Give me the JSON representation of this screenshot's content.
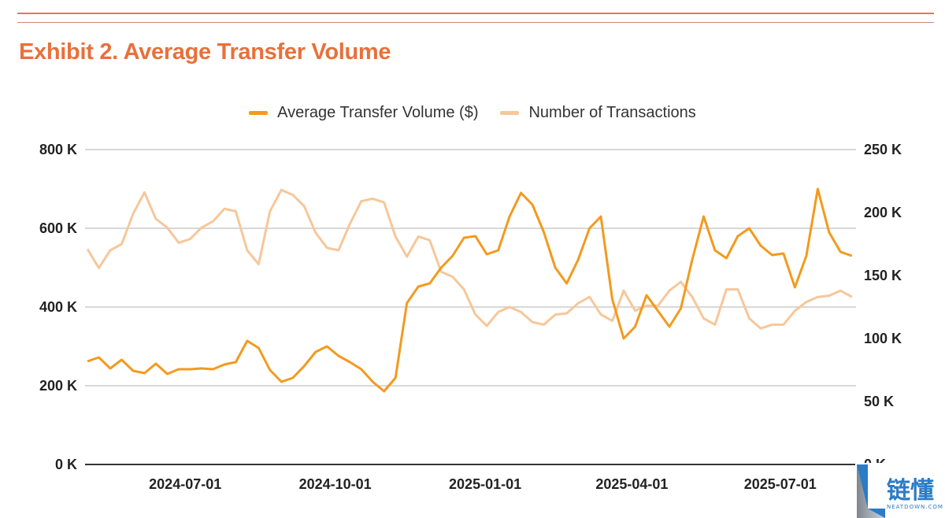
{
  "header": {
    "title": "Exhibit 2. Average Transfer Volume"
  },
  "colors": {
    "accent": "#E8703A",
    "series_primary": "#F39A1E",
    "series_secondary": "#F6C79A",
    "grid": "#CCCCCC"
  },
  "watermark": {
    "text": "链懂",
    "sub": "NEATDOWN.COM"
  },
  "chart_data": {
    "type": "line",
    "title": "Exhibit 2. Average Transfer Volume",
    "legend_position": "top",
    "grid": true,
    "x_ticks": [
      "2024-07-01",
      "2024-10-01",
      "2025-01-01",
      "2025-04-01",
      "2025-07-01"
    ],
    "y_left": {
      "ylim": [
        0,
        800000
      ],
      "ticks": [
        "0 K",
        "200 K",
        "400 K",
        "600 K",
        "800 K"
      ],
      "tick_values": [
        0,
        200000,
        400000,
        600000,
        800000
      ]
    },
    "y_right": {
      "ylim": [
        0,
        250000
      ],
      "ticks": [
        "0 K",
        "50 K",
        "100 K",
        "150 K",
        "200 K",
        "250 K"
      ],
      "tick_values": [
        0,
        50000,
        100000,
        150000,
        200000,
        250000
      ]
    },
    "x": [
      "2024-05-02",
      "2024-05-09",
      "2024-05-16",
      "2024-05-23",
      "2024-05-30",
      "2024-06-06",
      "2024-06-13",
      "2024-06-20",
      "2024-06-27",
      "2024-07-04",
      "2024-07-11",
      "2024-07-18",
      "2024-07-25",
      "2024-08-01",
      "2024-08-08",
      "2024-08-15",
      "2024-08-22",
      "2024-08-29",
      "2024-09-05",
      "2024-09-12",
      "2024-09-19",
      "2024-09-26",
      "2024-10-03",
      "2024-10-10",
      "2024-10-17",
      "2024-10-24",
      "2024-10-31",
      "2024-11-07",
      "2024-11-14",
      "2024-11-21",
      "2024-11-28",
      "2024-12-05",
      "2024-12-12",
      "2024-12-19",
      "2024-12-26",
      "2025-01-02",
      "2025-01-09",
      "2025-01-16",
      "2025-01-23",
      "2025-01-30",
      "2025-02-06",
      "2025-02-13",
      "2025-02-20",
      "2025-02-27",
      "2025-03-06",
      "2025-03-13",
      "2025-03-20",
      "2025-03-27",
      "2025-04-03",
      "2025-04-10",
      "2025-04-17",
      "2025-04-24",
      "2025-05-01",
      "2025-05-08",
      "2025-05-15",
      "2025-05-22",
      "2025-05-29",
      "2025-06-05",
      "2025-06-12",
      "2025-06-19",
      "2025-06-26",
      "2025-07-03",
      "2025-07-10",
      "2025-07-17",
      "2025-07-24",
      "2025-07-31",
      "2025-08-07",
      "2025-08-14"
    ],
    "series": [
      {
        "name": "Average Transfer Volume ($)",
        "axis": "left",
        "values": [
          262000,
          272000,
          244000,
          266000,
          238000,
          232000,
          256000,
          230000,
          242000,
          242000,
          244000,
          242000,
          254000,
          260000,
          314000,
          296000,
          240000,
          210000,
          220000,
          250000,
          286000,
          300000,
          276000,
          260000,
          242000,
          210000,
          186000,
          220000,
          410000,
          452000,
          460000,
          500000,
          530000,
          576000,
          580000,
          534000,
          544000,
          630000,
          690000,
          660000,
          590000,
          500000,
          460000,
          520000,
          600000,
          630000,
          420000,
          320000,
          350000,
          430000,
          390000,
          350000,
          396000,
          520000,
          630000,
          544000,
          524000,
          580000,
          600000,
          556000,
          532000,
          536000,
          450000,
          530000,
          700000,
          590000,
          540000,
          530000
        ]
      },
      {
        "name": "Number of Transactions",
        "axis": "right",
        "values": [
          171000,
          156000,
          170000,
          175000,
          199000,
          216000,
          195000,
          188000,
          176000,
          179000,
          188000,
          193000,
          203000,
          201000,
          170000,
          159000,
          201000,
          218000,
          214000,
          205000,
          184000,
          172000,
          170000,
          191000,
          209000,
          211000,
          208000,
          181000,
          165000,
          181000,
          178000,
          153000,
          149000,
          139000,
          119000,
          110000,
          121000,
          125000,
          121000,
          113000,
          111000,
          119000,
          120000,
          128000,
          133000,
          119000,
          114000,
          138000,
          122000,
          126000,
          126000,
          138000,
          145000,
          133000,
          116000,
          111000,
          139000,
          139000,
          116000,
          108000,
          111000,
          111000,
          122000,
          129000,
          133000,
          134000,
          138000,
          133000
        ]
      }
    ]
  }
}
